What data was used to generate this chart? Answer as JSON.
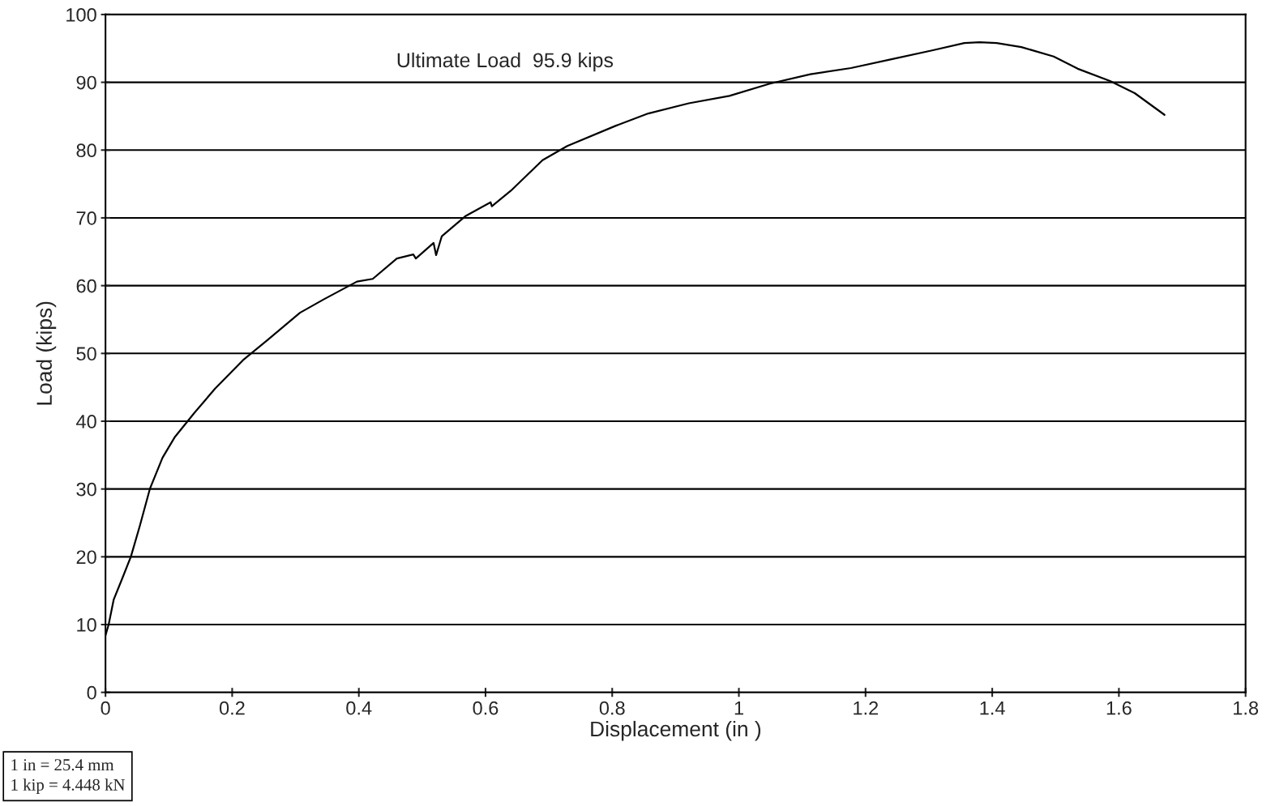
{
  "chart_data": {
    "type": "line",
    "xlabel": "Displacement (in )",
    "ylabel": "Load (kips)",
    "x": [
      0.0,
      0.005,
      0.013,
      0.026,
      0.04,
      0.054,
      0.07,
      0.09,
      0.109,
      0.14,
      0.173,
      0.217,
      0.256,
      0.307,
      0.345,
      0.397,
      0.422,
      0.46,
      0.486,
      0.49,
      0.518,
      0.522,
      0.531,
      0.569,
      0.608,
      0.61,
      0.64,
      0.69,
      0.729,
      0.806,
      0.857,
      0.921,
      0.985,
      1.049,
      1.113,
      1.177,
      1.241,
      1.305,
      1.356,
      1.38,
      1.407,
      1.446,
      1.497,
      1.535,
      1.586,
      1.625,
      1.672
    ],
    "series": [
      {
        "color": "#000000",
        "values": [
          8.4,
          10,
          13.7,
          16.7,
          20,
          24.5,
          30,
          34.6,
          37.6,
          41.2,
          44.8,
          49,
          52,
          56,
          58,
          60.6,
          61,
          64,
          64.6,
          64,
          66.3,
          64.5,
          67.3,
          70.3,
          72.3,
          71.7,
          74,
          78.5,
          80.6,
          83.6,
          85.4,
          86.9,
          88,
          89.8,
          91.2,
          92.1,
          93.4,
          94.7,
          95.8,
          95.9,
          95.8,
          95.2,
          93.8,
          92,
          90.2,
          88.4,
          85.2
        ]
      }
    ],
    "xlim": [
      0,
      1.8
    ],
    "xticks": [
      0,
      0.2,
      0.4,
      0.6,
      0.8,
      1,
      1.2,
      1.4,
      1.6,
      1.8
    ],
    "ylim": [
      0,
      100
    ],
    "yticks": [
      0,
      10,
      20,
      30,
      40,
      50,
      60,
      70,
      80,
      90,
      100
    ],
    "grid": "y",
    "marker": "none",
    "line_style": "solid",
    "legend": false,
    "annotations": [
      "Ultimate Load  95.9 kips",
      "1 in = 25.4 mm\n1 kip = 4.448 kN"
    ]
  }
}
